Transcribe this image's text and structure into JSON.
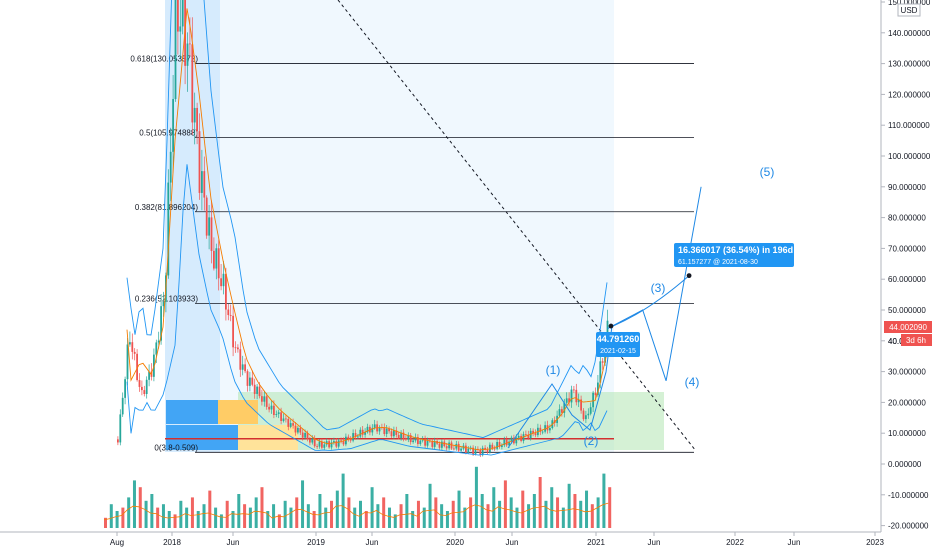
{
  "currency_badge": "USD",
  "price_tag": {
    "value": "44.002090",
    "countdown": "3d 6h",
    "under_label": "40.0"
  },
  "colors": {
    "up": "#26a69a",
    "down": "#ef5350",
    "fib": "#131722",
    "channel": "#2196f3",
    "ema": "#f57c00",
    "support": "#d32f2f",
    "wave": "#1e88e5",
    "zone": "#b2e5b2",
    "tag_bg": "#2196f3"
  },
  "fib_levels": [
    {
      "label": "0.618(130.053572)",
      "value": 130.053572
    },
    {
      "label": "0.5(105.974888)",
      "value": 105.974888
    },
    {
      "label": "0.382(81.896204)",
      "value": 81.896204
    },
    {
      "label": "0.236(52.103933)",
      "value": 52.103933
    },
    {
      "label": "0(3.8-0.509)",
      "value": 3.8
    }
  ],
  "callouts": {
    "price": {
      "value": "44.791260",
      "date": "2021-02-15"
    },
    "projection": {
      "headline": "16.366017 (36.54%) in 196d",
      "detail": "61.157277 @ 2021-08-30"
    }
  },
  "wave_labels": [
    "(1)",
    "(2)",
    "(3)",
    "(4)",
    "(5)"
  ],
  "chart_data": {
    "type": "bar",
    "xlabel": "",
    "ylabel": "",
    "ylim": [
      -20,
      150
    ],
    "y_ticks": [
      "150.000000",
      "140.000000",
      "130.000000",
      "120.000000",
      "110.000000",
      "100.000000",
      "90.000000",
      "80.000000",
      "70.000000",
      "60.000000",
      "50.000000",
      "40.000000",
      "30.000000",
      "20.000000",
      "10.000000",
      "0.000000",
      "-10.000000",
      "-20.000000"
    ],
    "x_ticks": [
      "Aug",
      "2018",
      "Jun",
      "2019",
      "Jun",
      "2020",
      "Jun",
      "2021",
      "Jun",
      "2022",
      "Jun",
      "2023"
    ],
    "last_price": 44.00209,
    "horizontal_support": 8.2,
    "price_path": [
      [
        "2017-08",
        8
      ],
      [
        "2017-09",
        42
      ],
      [
        "2017-10",
        22
      ],
      [
        "2017-11",
        32
      ],
      [
        "2017-12",
        55
      ],
      [
        "2018-01",
        150
      ],
      [
        "2018-02",
        135
      ],
      [
        "2018-03",
        95
      ],
      [
        "2018-04",
        70
      ],
      [
        "2018-05",
        58
      ],
      [
        "2018-06",
        38
      ],
      [
        "2018-07",
        28
      ],
      [
        "2018-09",
        18
      ],
      [
        "2018-11",
        12
      ],
      [
        "2019-01",
        6
      ],
      [
        "2019-03",
        7
      ],
      [
        "2019-06",
        12
      ],
      [
        "2019-09",
        8
      ],
      [
        "2019-12",
        6
      ],
      [
        "2020-03",
        4
      ],
      [
        "2020-06",
        8
      ],
      [
        "2020-09",
        12
      ],
      [
        "2020-11",
        24
      ],
      [
        "2020-12",
        14
      ],
      [
        "2021-01",
        25
      ],
      [
        "2021-02",
        46
      ]
    ],
    "volume_series": [
      3,
      7,
      5,
      6,
      9,
      14,
      12,
      8,
      10,
      6,
      7,
      5,
      4,
      8,
      6,
      9,
      5,
      7,
      11,
      6,
      4,
      8,
      5,
      10,
      7,
      6,
      9,
      12,
      5,
      7,
      4,
      8,
      6,
      9,
      14,
      7,
      5,
      10,
      6,
      8,
      11,
      16,
      9,
      6,
      8,
      5,
      12,
      7,
      9,
      6,
      4,
      7,
      10,
      5,
      8,
      6,
      13,
      9,
      7,
      5,
      8,
      11,
      6,
      9,
      18,
      10,
      7,
      12,
      8,
      14,
      9,
      6,
      11,
      7,
      10,
      15,
      8,
      12,
      9,
      6,
      13,
      10,
      8,
      11,
      7,
      9,
      16,
      12
    ],
    "projection": [
      [
        "2021-02-15",
        44.79
      ],
      [
        "2021-08-30",
        61.16
      ]
    ],
    "elliott_projection": [
      [
        "2021-02",
        44
      ],
      [
        "2021-05",
        50
      ],
      [
        "2021-07",
        27
      ],
      [
        "2021-10",
        90
      ]
    ]
  }
}
